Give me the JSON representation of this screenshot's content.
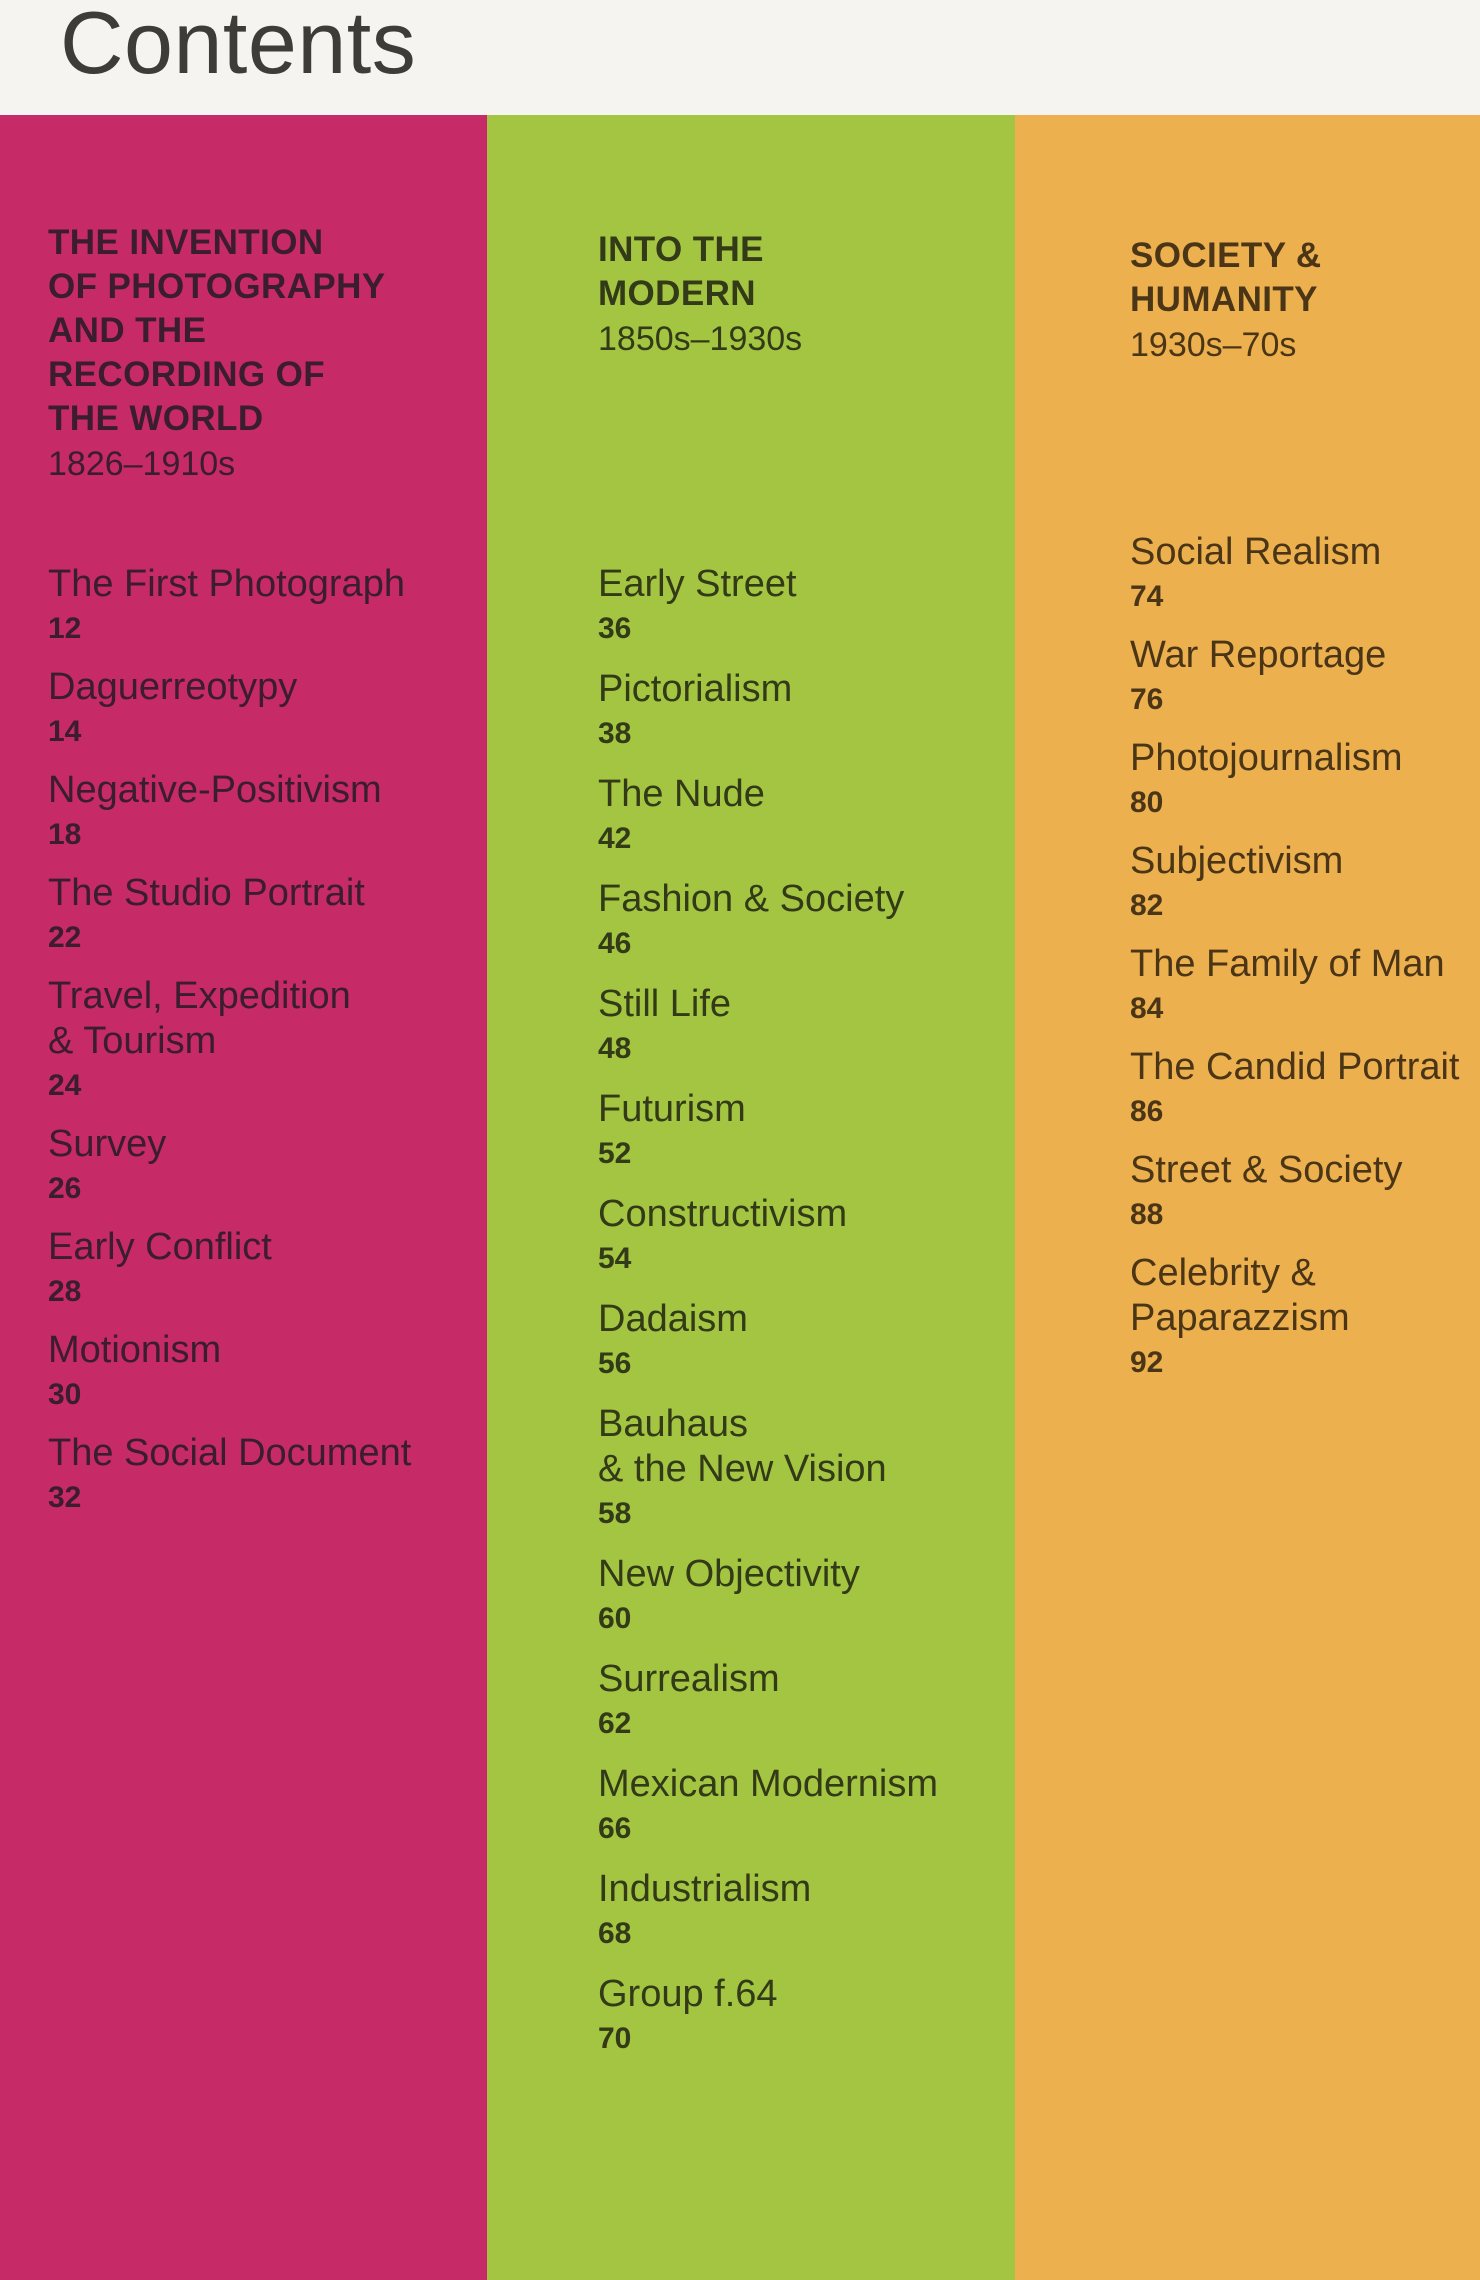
{
  "page_title": "Contents",
  "colors": {
    "header_band": "#f5f4f0",
    "header_text": "#3e3c39",
    "pink": "#c62a67",
    "green": "#a4c542",
    "orange": "#edb04e",
    "pink_text": "#3a1d2e",
    "green_text": "#333a17",
    "orange_text": "#4b3517"
  },
  "columns": [
    {
      "name": "the-invention-of-photography",
      "bg_color": "#c62a67",
      "text_color": "#3a1d2e",
      "title_lines": [
        "THE INVENTION",
        "OF PHOTOGRAPHY",
        "AND THE",
        "RECORDING OF",
        "THE WORLD"
      ],
      "date_range": "1826–1910s",
      "entries": [
        {
          "lines": [
            "The First Photograph"
          ],
          "page": "12"
        },
        {
          "lines": [
            "Daguerreotypy"
          ],
          "page": "14"
        },
        {
          "lines": [
            "Negative-Positivism"
          ],
          "page": "18"
        },
        {
          "lines": [
            "The Studio Portrait"
          ],
          "page": "22"
        },
        {
          "lines": [
            "Travel, Expedition",
            "& Tourism"
          ],
          "page": "24"
        },
        {
          "lines": [
            "Survey"
          ],
          "page": "26"
        },
        {
          "lines": [
            "Early Conflict"
          ],
          "page": "28"
        },
        {
          "lines": [
            "Motionism"
          ],
          "page": "30"
        },
        {
          "lines": [
            "The Social Document"
          ],
          "page": "32"
        }
      ]
    },
    {
      "name": "into-the-modern",
      "bg_color": "#a4c542",
      "text_color": "#333a17",
      "title_lines": [
        "INTO THE",
        "MODERN"
      ],
      "date_range": "1850s–1930s",
      "entries": [
        {
          "lines": [
            "Early Street"
          ],
          "page": "36"
        },
        {
          "lines": [
            "Pictorialism"
          ],
          "page": "38"
        },
        {
          "lines": [
            "The Nude"
          ],
          "page": "42"
        },
        {
          "lines": [
            "Fashion & Society"
          ],
          "page": "46"
        },
        {
          "lines": [
            "Still Life"
          ],
          "page": "48"
        },
        {
          "lines": [
            "Futurism"
          ],
          "page": "52"
        },
        {
          "lines": [
            "Constructivism"
          ],
          "page": "54"
        },
        {
          "lines": [
            "Dadaism"
          ],
          "page": "56"
        },
        {
          "lines": [
            "Bauhaus",
            "& the New Vision"
          ],
          "page": "58"
        },
        {
          "lines": [
            "New Objectivity"
          ],
          "page": "60"
        },
        {
          "lines": [
            "Surrealism"
          ],
          "page": "62"
        },
        {
          "lines": [
            "Mexican Modernism"
          ],
          "page": "66"
        },
        {
          "lines": [
            "Industrialism"
          ],
          "page": "68"
        },
        {
          "lines": [
            "Group f.64"
          ],
          "page": "70"
        }
      ]
    },
    {
      "name": "society-and-humanity",
      "bg_color": "#edb04e",
      "text_color": "#4b3517",
      "title_lines": [
        "SOCIETY &",
        "HUMANITY"
      ],
      "date_range": "1930s–70s",
      "entries": [
        {
          "lines": [
            "Social Realism"
          ],
          "page": "74"
        },
        {
          "lines": [
            "War Reportage"
          ],
          "page": "76"
        },
        {
          "lines": [
            "Photojournalism"
          ],
          "page": "80"
        },
        {
          "lines": [
            "Subjectivism"
          ],
          "page": "82"
        },
        {
          "lines": [
            "The Family of Man"
          ],
          "page": "84"
        },
        {
          "lines": [
            "The Candid Portrait"
          ],
          "page": "86"
        },
        {
          "lines": [
            "Street & Society"
          ],
          "page": "88"
        },
        {
          "lines": [
            "Celebrity &",
            "Paparazzism"
          ],
          "page": "92"
        }
      ]
    }
  ]
}
